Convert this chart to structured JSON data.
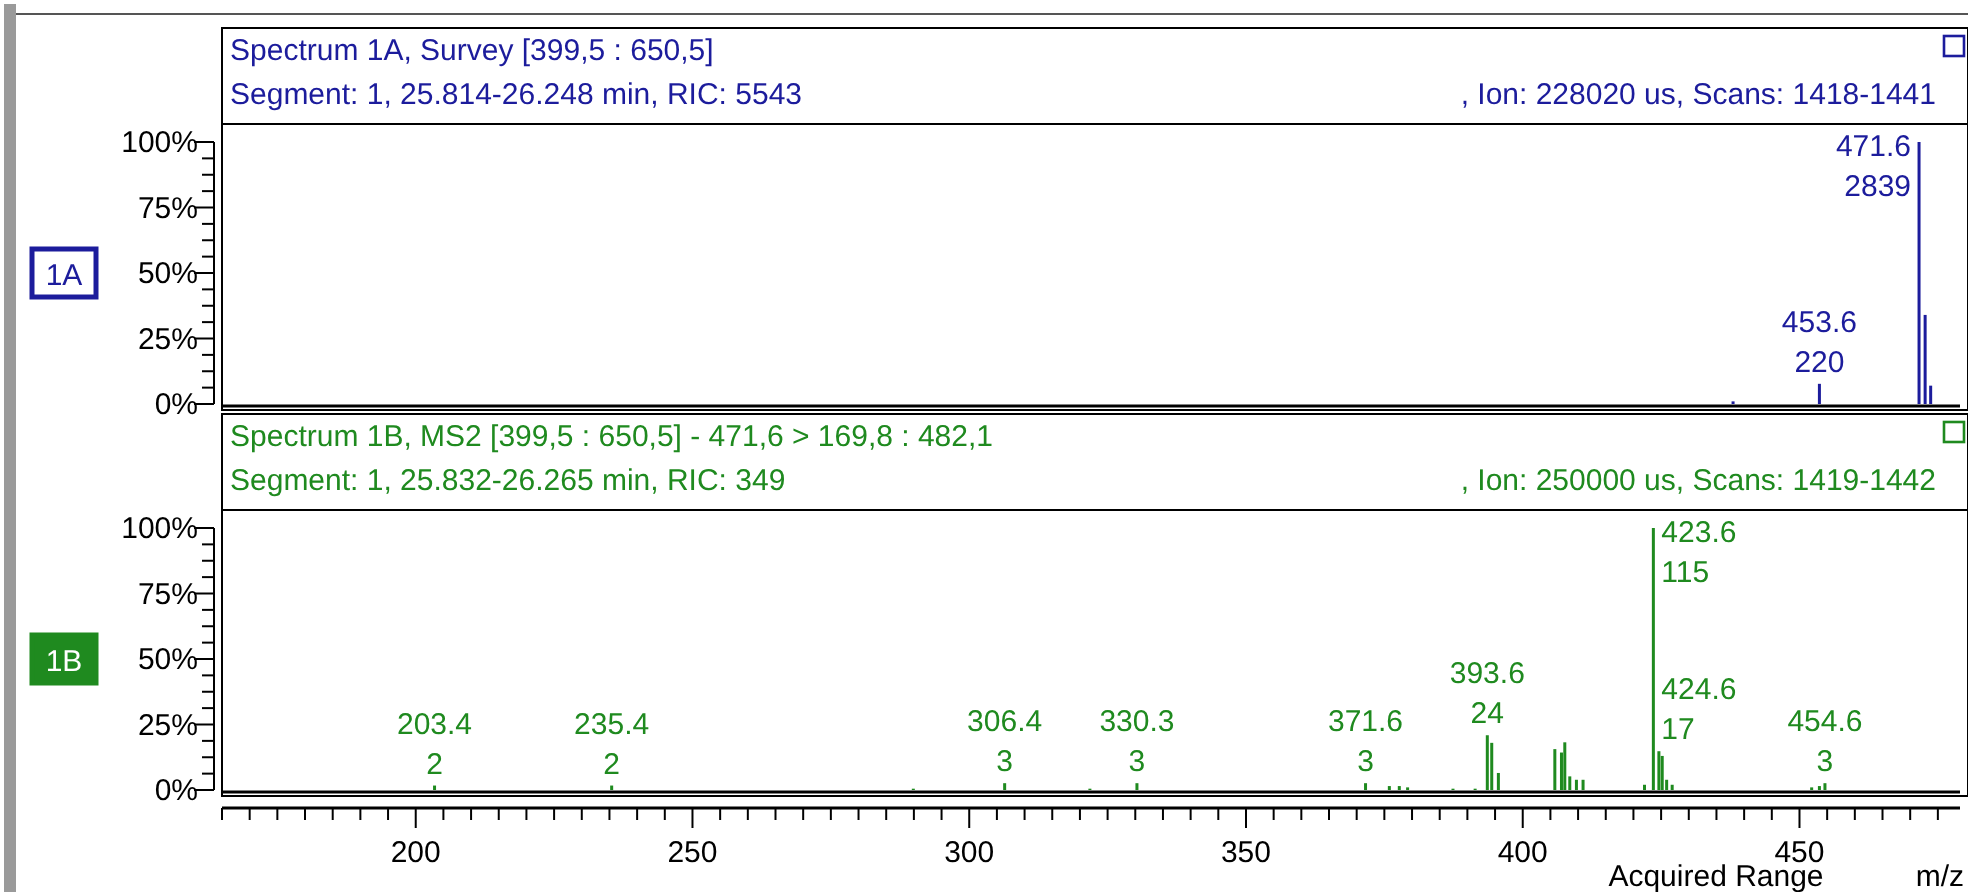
{
  "chart_data": [
    {
      "type": "bar",
      "title": "Spectrum 1A, Survey [399,5 : 650,5]",
      "subtitle": "Segment: 1, 25.814-26.248 min, RIC: 5543",
      "tick_labels": "y",
      "annotations": [
        ", Ion: 228020 us, Scans: 1418-1441",
        "1A",
        {
          "text": "453.6\n220",
          "x": 453.6,
          "y": 7.7
        },
        {
          "text": "471.6\n2839",
          "x": 471.6,
          "y": 100
        }
      ],
      "xlim": [
        165,
        479
      ],
      "ylim": [
        0,
        100
      ],
      "yticks": [
        {
          "value": 0,
          "label": "0%"
        },
        {
          "value": 6.25,
          "label": null
        },
        {
          "value": 12.5,
          "label": null
        },
        {
          "value": 18.75,
          "label": null
        },
        {
          "value": 25,
          "label": "25%"
        },
        {
          "value": 31.25,
          "label": null
        },
        {
          "value": 37.5,
          "label": null
        },
        {
          "value": 43.75,
          "label": null
        },
        {
          "value": 50,
          "label": "50%"
        },
        {
          "value": 56.25,
          "label": null
        },
        {
          "value": 62.5,
          "label": null
        },
        {
          "value": 68.75,
          "label": null
        },
        {
          "value": 75,
          "label": "75%"
        },
        {
          "value": 81.25,
          "label": null
        },
        {
          "value": 87.5,
          "label": null
        },
        {
          "value": 93.75,
          "label": null
        },
        {
          "value": 100,
          "label": "100%"
        }
      ],
      "series": [
        {
          "color": "#1c1c9c",
          "x": [
            438,
            453.6,
            471.6,
            472.7,
            473.7
          ],
          "values": [
            1,
            7.7,
            100,
            34,
            7
          ]
        }
      ]
    },
    {
      "type": "bar",
      "title": "Spectrum 1B, MS2 [399,5 : 650,5] - 471,6 > 169,8 : 482,1",
      "subtitle": "Segment: 1, 25.832-26.265 min, RIC: 349",
      "xlabel": "m/z",
      "annotations": [
        ", Ion: 250000 us, Scans: 1419-1442",
        "1B",
        "Acquired Range",
        {
          "text": "203.4\n2",
          "x": 203.4,
          "y": 1.7
        },
        {
          "text": "235.4\n2",
          "x": 235.4,
          "y": 1.7
        },
        {
          "text": "306.4\n3",
          "x": 306.4,
          "y": 2.6
        },
        {
          "text": "330.3\n3",
          "x": 330.3,
          "y": 2.6
        },
        {
          "text": "371.6\n3",
          "x": 371.6,
          "y": 2.6
        },
        {
          "text": "393.6\n24",
          "x": 393.6,
          "y": 20.9
        },
        {
          "text": "423.6\n115",
          "x": 423.6,
          "y": 100
        },
        {
          "text": "424.6\n17",
          "x": 424.6,
          "y": 14.8
        },
        {
          "text": "454.6\n3",
          "x": 454.6,
          "y": 2.6
        }
      ],
      "xlim": [
        165,
        479
      ],
      "xticks": [
        {
          "value": 165,
          "label": null
        },
        {
          "value": 170,
          "label": null
        },
        {
          "value": 175,
          "label": null
        },
        {
          "value": 180,
          "label": null
        },
        {
          "value": 185,
          "label": null
        },
        {
          "value": 190,
          "label": null
        },
        {
          "value": 195,
          "label": null
        },
        200,
        {
          "value": 205,
          "label": null
        },
        {
          "value": 210,
          "label": null
        },
        {
          "value": 215,
          "label": null
        },
        {
          "value": 220,
          "label": null
        },
        {
          "value": 225,
          "label": null
        },
        {
          "value": 230,
          "label": null
        },
        {
          "value": 235,
          "label": null
        },
        {
          "value": 240,
          "label": null
        },
        {
          "value": 245,
          "label": null
        },
        250,
        {
          "value": 255,
          "label": null
        },
        {
          "value": 260,
          "label": null
        },
        {
          "value": 265,
          "label": null
        },
        {
          "value": 270,
          "label": null
        },
        {
          "value": 275,
          "label": null
        },
        {
          "value": 280,
          "label": null
        },
        {
          "value": 285,
          "label": null
        },
        {
          "value": 290,
          "label": null
        },
        {
          "value": 295,
          "label": null
        },
        300,
        {
          "value": 305,
          "label": null
        },
        {
          "value": 310,
          "label": null
        },
        {
          "value": 315,
          "label": null
        },
        {
          "value": 320,
          "label": null
        },
        {
          "value": 325,
          "label": null
        },
        {
          "value": 330,
          "label": null
        },
        {
          "value": 335,
          "label": null
        },
        {
          "value": 340,
          "label": null
        },
        {
          "value": 345,
          "label": null
        },
        350,
        {
          "value": 355,
          "label": null
        },
        {
          "value": 360,
          "label": null
        },
        {
          "value": 365,
          "label": null
        },
        {
          "value": 370,
          "label": null
        },
        {
          "value": 375,
          "label": null
        },
        {
          "value": 380,
          "label": null
        },
        {
          "value": 385,
          "label": null
        },
        {
          "value": 390,
          "label": null
        },
        {
          "value": 395,
          "label": null
        },
        400,
        {
          "value": 405,
          "label": null
        },
        {
          "value": 410,
          "label": null
        },
        {
          "value": 415,
          "label": null
        },
        {
          "value": 420,
          "label": null
        },
        {
          "value": 425,
          "label": null
        },
        {
          "value": 430,
          "label": null
        },
        {
          "value": 435,
          "label": null
        },
        {
          "value": 440,
          "label": null
        },
        {
          "value": 445,
          "label": null
        },
        450,
        {
          "value": 455,
          "label": null
        },
        {
          "value": 460,
          "label": null
        },
        {
          "value": 465,
          "label": null
        },
        {
          "value": 470,
          "label": null
        },
        {
          "value": 475,
          "label": null
        }
      ],
      "ylim": [
        0,
        100
      ],
      "yticks": [
        {
          "value": 0,
          "label": "0%"
        },
        {
          "value": 6.25,
          "label": null
        },
        {
          "value": 12.5,
          "label": null
        },
        {
          "value": 18.75,
          "label": null
        },
        {
          "value": 25,
          "label": "25%"
        },
        {
          "value": 31.25,
          "label": null
        },
        {
          "value": 37.5,
          "label": null
        },
        {
          "value": 43.75,
          "label": null
        },
        {
          "value": 50,
          "label": "50%"
        },
        {
          "value": 56.25,
          "label": null
        },
        {
          "value": 62.5,
          "label": null
        },
        {
          "value": 68.75,
          "label": null
        },
        {
          "value": 75,
          "label": "75%"
        },
        {
          "value": 81.25,
          "label": null
        },
        {
          "value": 87.5,
          "label": null
        },
        {
          "value": 93.75,
          "label": null
        },
        {
          "value": 100,
          "label": "100%"
        }
      ],
      "series": [
        {
          "color": "#1f8a1f",
          "x": [
            203.4,
            235.4,
            289.9,
            306.4,
            321.8,
            330.3,
            371.6,
            375.9,
            377.7,
            379.2,
            387.4,
            391.4,
            393.6,
            394.4,
            395.6,
            405.8,
            407,
            407.6,
            408.5,
            409.7,
            410.9,
            422,
            423.6,
            424.6,
            425.2,
            426,
            427,
            452.2,
            453.6,
            454.6
          ],
          "values": [
            1.7,
            1.7,
            0.5,
            2.6,
            0.5,
            2.6,
            2.6,
            1.5,
            1.5,
            1,
            0.5,
            0.5,
            20.9,
            18,
            6.5,
            15.6,
            14.3,
            18.2,
            5.2,
            3.9,
            3.9,
            2,
            100,
            14.8,
            13,
            3.9,
            2,
            1,
            1.5,
            2.6
          ]
        }
      ]
    }
  ]
}
